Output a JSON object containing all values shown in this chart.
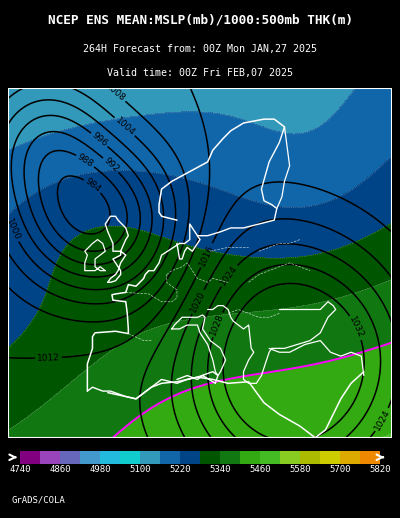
{
  "title_line1": "NCEP ENS MEAN:MSLP(mb)/1000:500mb THK(m)",
  "title_line2": "264H Forecast from: 00Z Mon JAN,27 2025",
  "title_line3": "Valid time: 00Z Fri FEB,07 2025",
  "credit": "GrADS/COLA",
  "background_color": "#000000",
  "colorbar_values": [
    4740,
    4860,
    4980,
    5100,
    5220,
    5340,
    5460,
    5580,
    5700,
    5820
  ],
  "thk_levels": [
    4740,
    4800,
    4860,
    4920,
    4980,
    5040,
    5100,
    5160,
    5220,
    5280,
    5340,
    5400,
    5460,
    5520,
    5580,
    5640,
    5700,
    5760,
    5820
  ],
  "thk_colors": [
    "#800080",
    "#9944BB",
    "#6666BB",
    "#4499CC",
    "#22BBDD",
    "#11CCCC",
    "#3399BB",
    "#1166AA",
    "#004488",
    "#005500",
    "#117711",
    "#33AA11",
    "#44BB22",
    "#88CC22",
    "#AABB00",
    "#CCCC00",
    "#DDAA00",
    "#EE8800",
    "#CC4400"
  ],
  "cb_colors": [
    "#800080",
    "#9944BB",
    "#6666BB",
    "#4499CC",
    "#22BBDD",
    "#11CCCC",
    "#3399BB",
    "#1166AA",
    "#004488",
    "#005500",
    "#117711",
    "#33AA11",
    "#44BB22",
    "#88CC22",
    "#AABB00",
    "#CCCC00",
    "#DDAA00",
    "#EE8800"
  ],
  "lon_min": -25,
  "lon_max": 50,
  "lat_min": 30,
  "lat_max": 75
}
